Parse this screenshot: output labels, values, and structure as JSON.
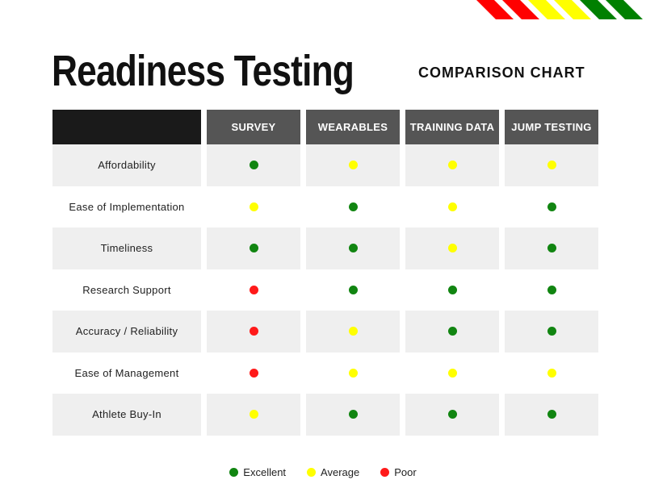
{
  "title": "Readiness Testing",
  "subtitle": "COMPARISON CHART",
  "colors": {
    "excellent": "#118511",
    "average": "#ffff00",
    "poor": "#ff1a1a",
    "stripe_red": "#ff0000",
    "stripe_yellow": "#ffff00",
    "stripe_green": "#008000"
  },
  "chart_data": {
    "type": "table",
    "columns": [
      "SURVEY",
      "WEARABLES",
      "TRAINING DATA",
      "JUMP TESTING"
    ],
    "rows": [
      {
        "label": "Affordability",
        "values": [
          "excellent",
          "average",
          "average",
          "average"
        ]
      },
      {
        "label": "Ease of Implementation",
        "values": [
          "average",
          "excellent",
          "average",
          "excellent"
        ]
      },
      {
        "label": "Timeliness",
        "values": [
          "excellent",
          "excellent",
          "average",
          "excellent"
        ]
      },
      {
        "label": "Research Support",
        "values": [
          "poor",
          "excellent",
          "excellent",
          "excellent"
        ]
      },
      {
        "label": "Accuracy / Reliability",
        "values": [
          "poor",
          "average",
          "excellent",
          "excellent"
        ]
      },
      {
        "label": "Ease of Management",
        "values": [
          "poor",
          "average",
          "average",
          "average"
        ]
      },
      {
        "label": "Athlete Buy-In",
        "values": [
          "average",
          "excellent",
          "excellent",
          "excellent"
        ]
      }
    ],
    "legend": [
      {
        "key": "excellent",
        "label": "Excellent"
      },
      {
        "key": "average",
        "label": "Average"
      },
      {
        "key": "poor",
        "label": "Poor"
      }
    ]
  }
}
